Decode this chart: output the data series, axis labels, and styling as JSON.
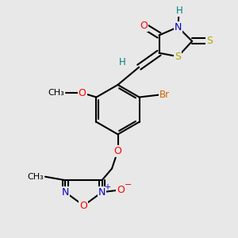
{
  "background_color": "#e8e8e8",
  "bond_color": "#000000",
  "bond_width": 1.5,
  "colors": {
    "O": "#ff0000",
    "N": "#0000cc",
    "S": "#aaaa00",
    "Br": "#cc6600",
    "H": "#008080",
    "C": "#000000"
  },
  "figsize": [
    3.0,
    3.0
  ],
  "dpi": 100
}
